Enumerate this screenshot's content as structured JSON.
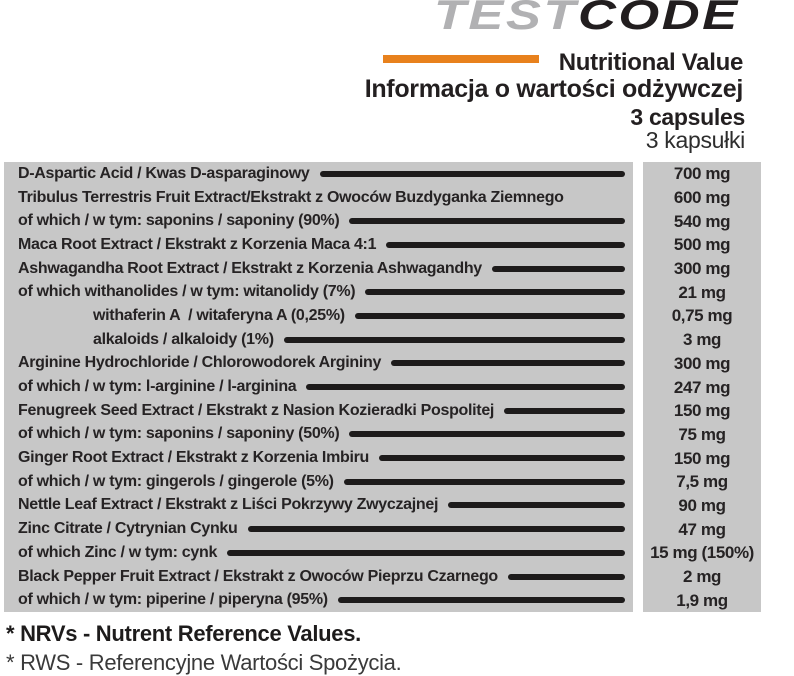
{
  "logo": {
    "part1": "TEST",
    "part2": "CODE",
    "part1_color": "#b1b1b3",
    "part2_color": "#221e1f"
  },
  "header": {
    "title_en": "Nutritional Value",
    "title_pl": "Informacja o wartości odżywczej",
    "serving_en": "3 capsules",
    "serving_pl": "3 kapsułki"
  },
  "table": {
    "columns": [
      "ingredient",
      "amount"
    ],
    "rows": [
      {
        "label": "D-Aspartic Acid / Kwas D-asparaginowy",
        "value": "700 mg",
        "leader": true,
        "indent": 0
      },
      {
        "label": "Tribulus Terrestris Fruit Extract/Ekstrakt z Owoców Buzdyganka Ziemnego",
        "value": "600 mg",
        "leader": false,
        "indent": 0
      },
      {
        "label": "of which / w tym: saponins / saponiny (90%)",
        "value": "540 mg",
        "leader": true,
        "indent": 0
      },
      {
        "label": "Maca Root Extract / Ekstrakt z Korzenia Maca 4:1",
        "value": "500 mg",
        "leader": true,
        "indent": 0
      },
      {
        "label": "Ashwagandha Root Extract / Ekstrakt z Korzenia Ashwagandhy",
        "value": "300 mg",
        "leader": true,
        "indent": 0
      },
      {
        "label": "of which withanolides / w tym: witanolidy (7%)",
        "value": "21 mg",
        "leader": true,
        "indent": 0
      },
      {
        "label": "withaferin A  / witaferyna A (0,25%)",
        "value": "0,75 mg",
        "leader": true,
        "indent": 1
      },
      {
        "label": "alkaloids / alkaloidy (1%)",
        "value": "3 mg",
        "leader": true,
        "indent": 1
      },
      {
        "label": "Arginine Hydrochloride / Chlorowodorek Argininy",
        "value": "300 mg",
        "leader": true,
        "indent": 0
      },
      {
        "label": "of which / w tym: l-arginine / l-arginina",
        "value": "247 mg",
        "leader": true,
        "indent": 0
      },
      {
        "label": "Fenugreek Seed Extract / Ekstrakt z Nasion Kozieradki Pospolitej",
        "value": "150 mg",
        "leader": true,
        "indent": 0
      },
      {
        "label": "of which / w tym: saponins / saponiny (50%)",
        "value": "75 mg",
        "leader": true,
        "indent": 0
      },
      {
        "label": "Ginger Root Extract / Ekstrakt z Korzenia Imbiru",
        "value": "150 mg",
        "leader": true,
        "indent": 0
      },
      {
        "label": "of which / w tym: gingerols / gingerole (5%)",
        "value": "7,5 mg",
        "leader": true,
        "indent": 0
      },
      {
        "label": "Nettle Leaf Extract / Ekstrakt z Liści Pokrzywy Zwyczajnej",
        "value": "90 mg",
        "leader": true,
        "indent": 0
      },
      {
        "label": "Zinc Citrate / Cytrynian Cynku",
        "value": "47 mg",
        "leader": true,
        "indent": 0
      },
      {
        "label": "of which Zinc / w tym: cynk",
        "value": "15 mg (150%)",
        "leader": true,
        "indent": 0
      },
      {
        "label": "Black Pepper Fruit Extract / Ekstrakt z Owoców Pieprzu Czarnego",
        "value": "2 mg",
        "leader": true,
        "indent": 0
      },
      {
        "label": "of which / w tym: piperine / piperyna (95%)",
        "value": "1,9 mg",
        "leader": true,
        "indent": 0
      }
    ]
  },
  "footnotes": {
    "en": "* NRVs - Nutrent Reference Values.",
    "pl": "* RWS - Referencyjne Wartości Spożycia."
  },
  "colors": {
    "accent_orange": "#e8811d",
    "table_background": "#c7c7c7",
    "text_dark": "#231f20",
    "logo_gray": "#b1b1b3"
  }
}
